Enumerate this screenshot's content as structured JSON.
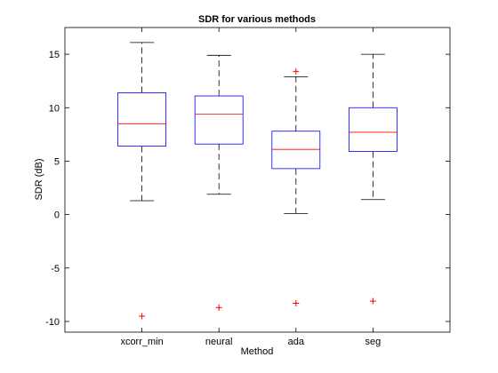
{
  "chart_data": {
    "type": "box",
    "title": "SDR for various methods",
    "xlabel": "Method",
    "ylabel": "SDR (dB)",
    "ylim": [
      -11,
      17.5
    ],
    "yticks": [
      -10,
      -5,
      0,
      5,
      10,
      15
    ],
    "grid": false,
    "categories": [
      "xcorr_min",
      "neural",
      "ada",
      "seg"
    ],
    "boxes": [
      {
        "whisker_low": 1.3,
        "q1": 6.4,
        "median": 8.5,
        "q3": 11.4,
        "whisker_high": 16.1,
        "outliers": [
          -9.5
        ]
      },
      {
        "whisker_low": 1.9,
        "q1": 6.6,
        "median": 9.4,
        "q3": 11.1,
        "whisker_high": 14.9,
        "outliers": [
          -8.7
        ]
      },
      {
        "whisker_low": 0.1,
        "q1": 4.3,
        "median": 6.1,
        "q3": 7.8,
        "whisker_high": 12.9,
        "outliers": [
          13.4,
          -8.3
        ]
      },
      {
        "whisker_low": 1.4,
        "q1": 5.9,
        "median": 7.7,
        "q3": 10.0,
        "whisker_high": 15.0,
        "outliers": [
          -8.1
        ]
      }
    ],
    "colors": {
      "box": "#0000ff",
      "median": "#ff0000",
      "whisker": "#000000",
      "outlier": "#ff0000"
    }
  }
}
